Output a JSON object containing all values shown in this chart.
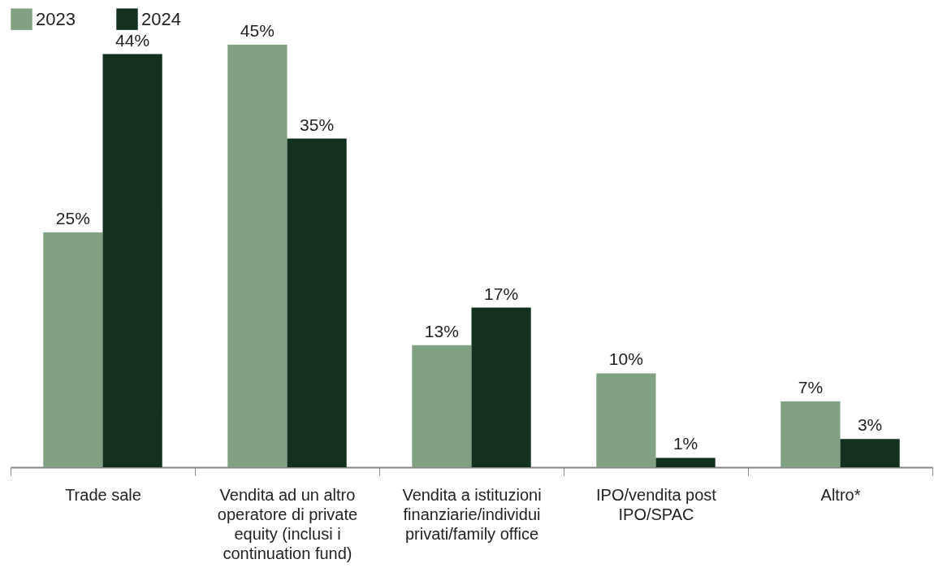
{
  "chart_data": {
    "type": "bar",
    "categories": [
      "Trade sale",
      "Vendita ad un altro operatore di private equity (inclusi i continuation fund)",
      "Vendita a istituzioni finanziarie/individui privati/family office",
      "IPO/vendita post IPO/SPAC",
      "Altro*"
    ],
    "series": [
      {
        "name": "2023",
        "color": "#80a283",
        "values": [
          25,
          45,
          13,
          10,
          7
        ],
        "value_labels": [
          "25%",
          "45%",
          "13%",
          "10%",
          "7%"
        ]
      },
      {
        "name": "2024",
        "color": "#13311f",
        "values": [
          44,
          35,
          17,
          1,
          3
        ],
        "value_labels": [
          "44%",
          "35%",
          "17%",
          "1%",
          "3%"
        ]
      }
    ],
    "legend": "top",
    "grid": false
  }
}
